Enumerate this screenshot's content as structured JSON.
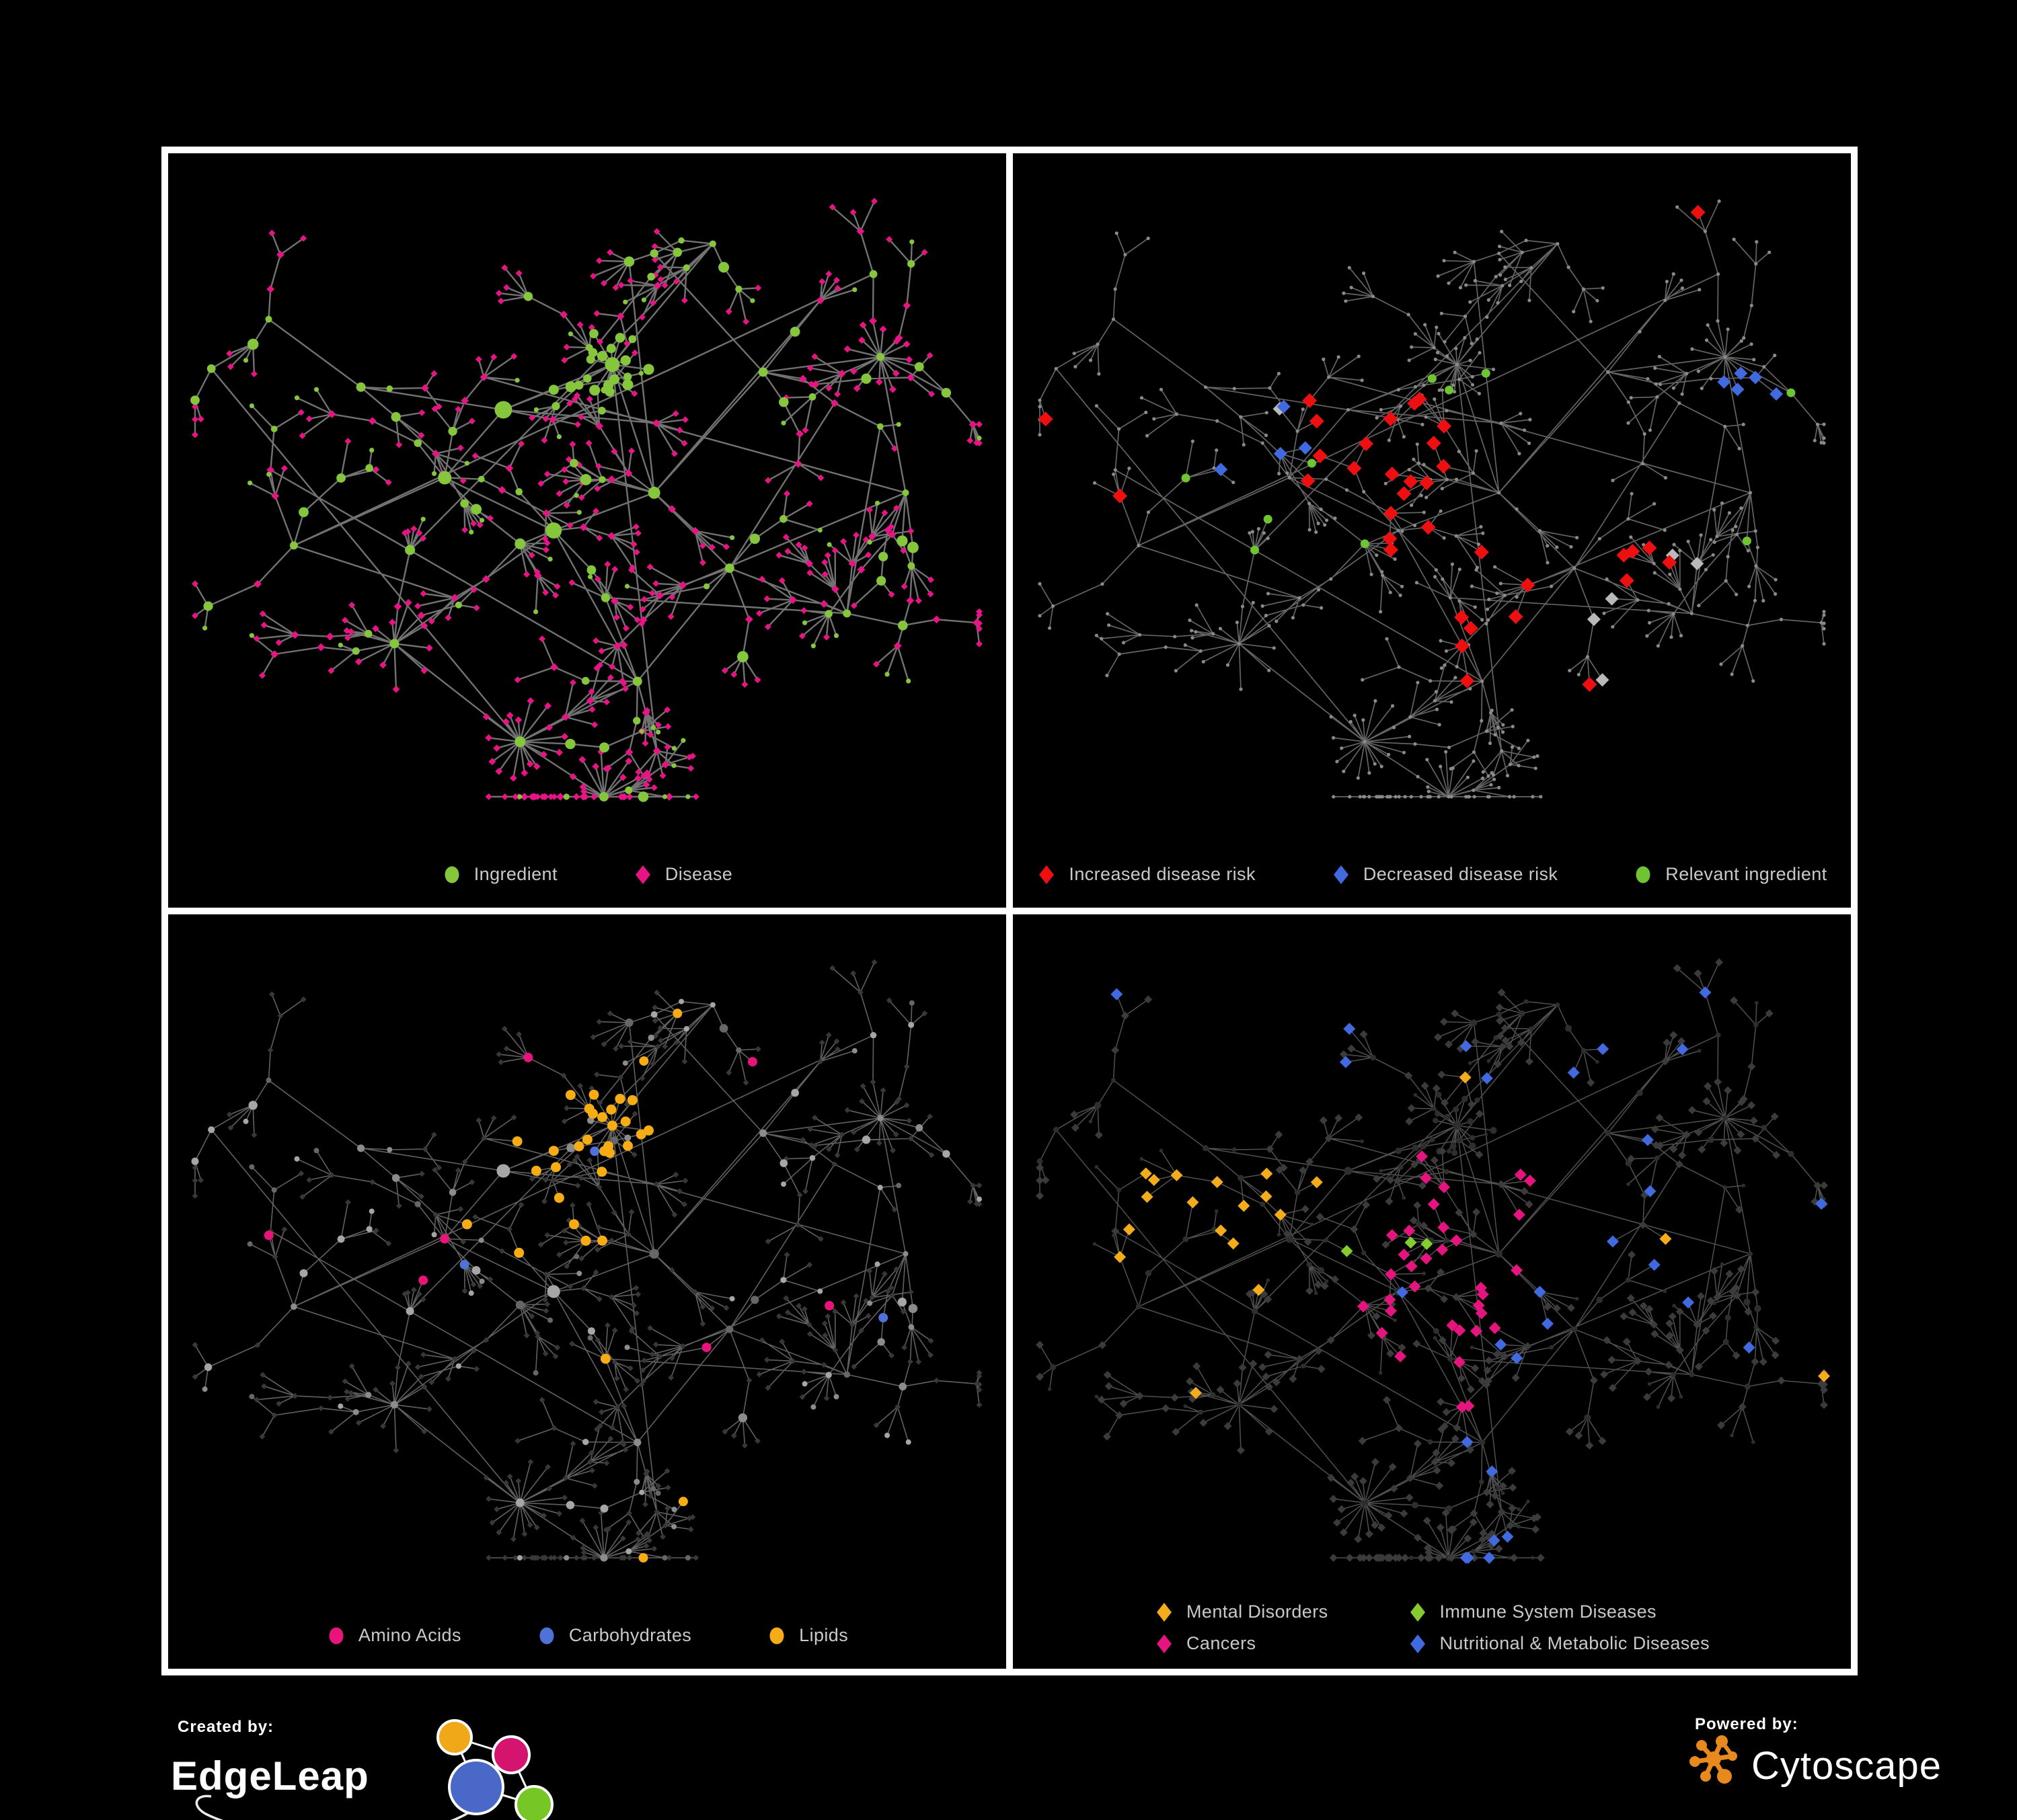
{
  "panels": [
    {
      "id": "ingredient-disease",
      "legend": [
        {
          "label": "Ingredient",
          "shape": "circle",
          "color": "#85c63c"
        },
        {
          "label": "Disease",
          "shape": "diamond",
          "color": "#e61484"
        }
      ]
    },
    {
      "id": "disease-risk",
      "legend": [
        {
          "label": "Increased disease risk",
          "shape": "diamond",
          "color": "#ee1010"
        },
        {
          "label": "Decreased disease risk",
          "shape": "diamond",
          "color": "#4169e0"
        },
        {
          "label": "Relevant ingredient",
          "shape": "circle",
          "color": "#6ec431"
        }
      ]
    },
    {
      "id": "nutrient-classes",
      "legend": [
        {
          "label": "Amino Acids",
          "shape": "circle",
          "color": "#e8147c"
        },
        {
          "label": "Carbohydrates",
          "shape": "circle",
          "color": "#4e72d8"
        },
        {
          "label": "Lipids",
          "shape": "circle",
          "color": "#f5ac15"
        }
      ]
    },
    {
      "id": "disease-categories",
      "legend": [
        {
          "label": "Mental Disorders",
          "shape": "diamond",
          "color": "#f3ac1c"
        },
        {
          "label": "Immune System Diseases",
          "shape": "diamond",
          "color": "#86cc2e"
        },
        {
          "label": "Cancers",
          "shape": "diamond",
          "color": "#e6147e"
        },
        {
          "label": "Nutritional & Metabolic Diseases",
          "shape": "diamond",
          "color": "#4169e0"
        }
      ]
    }
  ],
  "branding": {
    "created_by_label": "Created by:",
    "created_by_name": "EdgeLeap",
    "powered_by_label": "Powered by:",
    "powered_by_name": "Cytoscape"
  },
  "style": {
    "background": "#000000",
    "frame": "#ffffff",
    "legend_text": "#c9c9c9",
    "brand_text": "#ffffff",
    "cytoscape_orange": "#e8891d",
    "edgeleap_logo": {
      "orange": "#f0a818",
      "pink": "#d4146e",
      "blue": "#4a68c8",
      "green": "#76c626"
    },
    "colors": {
      "silver": "#b9b9b9",
      "base_dot": "#8a8a8a",
      "gray_node_light": "#a6a6a6",
      "gray_node_mid": "#8c8c8c",
      "gray_node_dark": "#676767",
      "dark_diamond": "#383838",
      "dark_diamond2": "#3b3b3b",
      "dark_circle": "#2e2e2e"
    },
    "edges": {
      "p1": {
        "color": "#787878",
        "width": 2.4,
        "opacity": 0.95
      },
      "p2": {
        "color": "#7d7d7d",
        "width": 1.7,
        "opacity": 0.8
      },
      "p3": {
        "color": "#8a8a8a",
        "width": 1.6,
        "opacity": 0.7
      },
      "p4": {
        "color": "#5e5e5e",
        "width": 1.5,
        "opacity": 0.85
      }
    }
  }
}
